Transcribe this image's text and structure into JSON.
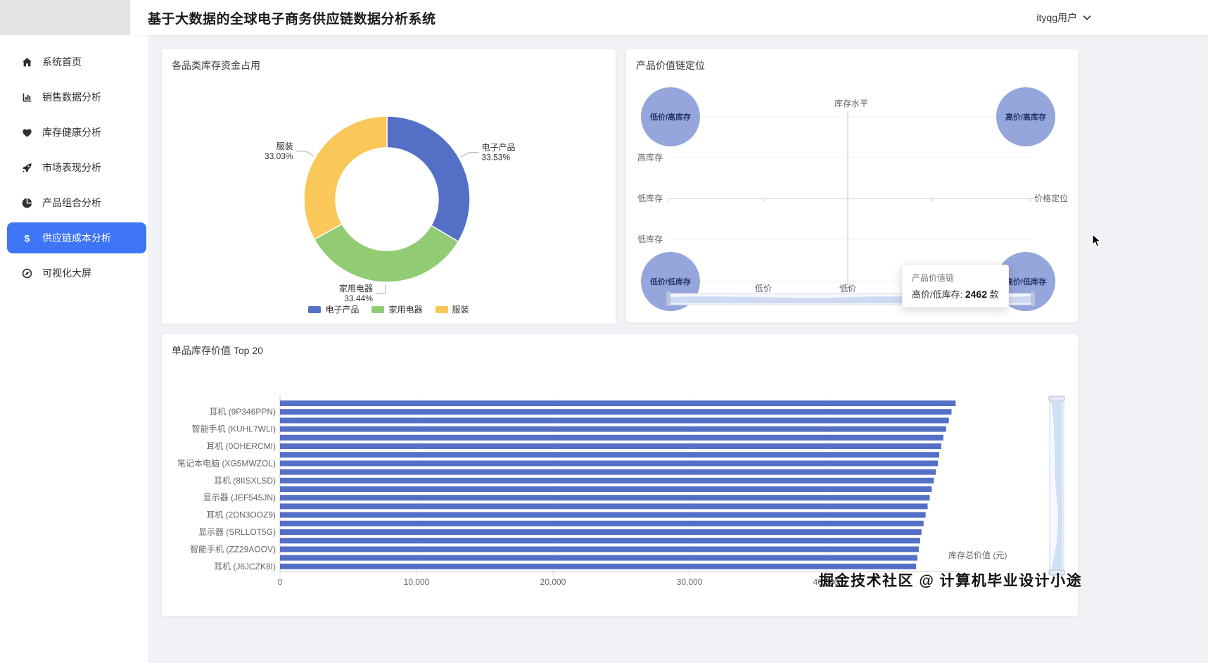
{
  "header": {
    "title": "基于大数据的全球电子商务供应链数据分析系统",
    "user_menu": "ityqg用户"
  },
  "sidebar": {
    "items": [
      {
        "label": "系统首页",
        "icon": "home-icon",
        "active": false
      },
      {
        "label": "销售数据分析",
        "icon": "sales-chart-icon",
        "active": false
      },
      {
        "label": "库存健康分析",
        "icon": "heart-icon",
        "active": false
      },
      {
        "label": "市场表现分析",
        "icon": "rocket-icon",
        "active": false
      },
      {
        "label": "产品组合分析",
        "icon": "portfolio-pie-icon",
        "active": false
      },
      {
        "label": "供应链成本分析",
        "icon": "dollar-icon",
        "active": true
      },
      {
        "label": "可视化大屏",
        "icon": "compass-icon",
        "active": false
      }
    ]
  },
  "watermark": "掘金技术社区 @ 计算机毕业设计小途",
  "chart_data": [
    {
      "id": "category-inventory-funds",
      "type": "pie",
      "title": "各品类库存资金占用",
      "labels": [
        "电子产品",
        "家用电器",
        "服装"
      ],
      "values": [
        33.53,
        33.44,
        33.03
      ],
      "unit": "%",
      "colors": [
        "#5470c6",
        "#91cc75",
        "#fac858"
      ],
      "legend": [
        "电子产品",
        "家用电器",
        "服装"
      ],
      "legend_position": "bottom",
      "donut": true
    },
    {
      "id": "product-value-chain",
      "type": "scatter",
      "title": "产品价值链定位",
      "y_axis_name": "库存水平",
      "x_axis_name": "价格定位",
      "y_tick_labels": [
        "高库存",
        "低库存",
        "低库存"
      ],
      "x_tick_labels": [
        "低价",
        "低价"
      ],
      "bubble_color": "#5470c6",
      "bubbles": [
        {
          "label": "低价/高库存",
          "pos": "top-left"
        },
        {
          "label": "高价/高库存",
          "pos": "top-right"
        },
        {
          "label": "低价/低库存",
          "pos": "bottom-left"
        },
        {
          "label": "高价/低库存",
          "pos": "bottom-right"
        }
      ],
      "tooltip": {
        "title": "产品价值链",
        "label": "高价/低库存:",
        "value": "2462",
        "unit": "款"
      }
    },
    {
      "id": "top20-inventory-value",
      "type": "bar",
      "title": "单品库存价值 Top 20",
      "orientation": "horizontal",
      "xlabel": "库存总价值 (元)",
      "x_ticks": [
        "0",
        "10,000",
        "20,000",
        "30,000",
        "40,000"
      ],
      "xlim": [
        0,
        50000
      ],
      "bar_color": "#5470c6",
      "categories": [
        "",
        "耳机 (9P346PPN)",
        "",
        "智能手机 (KUHL7WLI)",
        "",
        "耳机 (0OHERCMI)",
        "",
        "笔记本电脑 (XG5MWZOL)",
        "",
        "耳机 (8IISXLSD)",
        "",
        "显示器 (JEF545JN)",
        "",
        "耳机 (2DN3OOZ9)",
        "",
        "显示器 (SRLLOT5G)",
        "",
        "智能手机 (ZZ29AOOV)",
        "",
        "耳机 (J6JCZK8I)"
      ],
      "values": [
        49500,
        49200,
        49000,
        48800,
        48600,
        48450,
        48300,
        48200,
        48050,
        47900,
        47750,
        47600,
        47450,
        47300,
        47150,
        47000,
        46900,
        46800,
        46700,
        46600
      ]
    }
  ]
}
